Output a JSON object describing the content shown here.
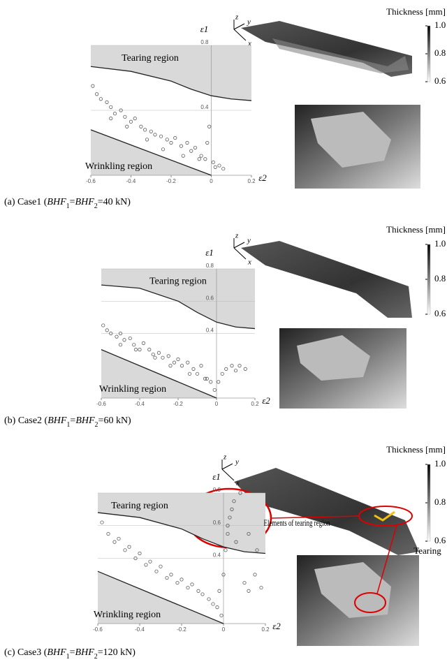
{
  "chart_data": [
    {
      "type": "scatter",
      "x_label": "ε2",
      "y_label": "ε1",
      "color": "#333333",
      "xlim": [
        -0.6,
        0.2
      ],
      "ylim": [
        0,
        0.8
      ],
      "xticks": [
        -0.6,
        -0.4,
        -0.2,
        0,
        0.2
      ],
      "yticks": [
        0.4,
        0.8
      ],
      "x": [
        -0.59,
        -0.57,
        -0.55,
        -0.52,
        -0.5,
        -0.48,
        -0.45,
        -0.43,
        -0.4,
        -0.38,
        -0.35,
        -0.33,
        -0.3,
        -0.28,
        -0.25,
        -0.22,
        -0.2,
        -0.18,
        -0.15,
        -0.12,
        -0.1,
        -0.08,
        -0.05,
        -0.03,
        -0.01,
        0.01,
        0.02,
        0.04,
        0.06,
        -0.02,
        -0.06,
        -0.14,
        -0.24,
        -0.32,
        -0.42,
        -0.5
      ],
      "values": [
        0.55,
        0.5,
        0.47,
        0.45,
        0.42,
        0.38,
        0.4,
        0.36,
        0.33,
        0.35,
        0.3,
        0.28,
        0.27,
        0.25,
        0.24,
        0.22,
        0.2,
        0.23,
        0.18,
        0.2,
        0.15,
        0.17,
        0.12,
        0.1,
        0.3,
        0.08,
        0.05,
        0.06,
        0.04,
        0.2,
        0.1,
        0.12,
        0.16,
        0.22,
        0.3,
        0.35
      ],
      "tearing_curve": {
        "x": [
          -0.6,
          -0.4,
          -0.2,
          -0.1,
          0,
          0.1,
          0.2
        ],
        "values": [
          0.67,
          0.64,
          0.58,
          0.53,
          0.49,
          0.47,
          0.46
        ]
      },
      "wrinkling_line": {
        "x": [
          -0.6,
          0
        ],
        "values": [
          0.28,
          0
        ]
      },
      "tearing_text": "Tearing region",
      "wrinkling_text": "Wrinkling region",
      "colorbar_title": "Thickness [mm]",
      "colorbar_ticks": [
        {
          "value": 1,
          "label": "1.0"
        },
        0.8,
        0.6
      ],
      "caption": [
        "(a) Case1 (",
        "BHF",
        "1",
        "=",
        "BHF",
        "2",
        "=40 kN)"
      ]
    },
    {
      "type": "scatter",
      "x_label": "ε2",
      "y_label": "ε1",
      "color": "#333333",
      "xlim": [
        -0.6,
        0.2
      ],
      "ylim": [
        0,
        0.8
      ],
      "xticks": [
        -0.6,
        -0.4,
        -0.2,
        0,
        0.2
      ],
      "yticks": [
        0.4,
        0.6,
        0.8
      ],
      "x": [
        -0.59,
        -0.57,
        -0.55,
        -0.52,
        -0.5,
        -0.48,
        -0.45,
        -0.43,
        -0.4,
        -0.38,
        -0.35,
        -0.33,
        -0.3,
        -0.28,
        -0.25,
        -0.22,
        -0.2,
        -0.18,
        -0.15,
        -0.12,
        -0.1,
        -0.08,
        -0.05,
        -0.03,
        -0.01,
        0.01,
        0.03,
        0.05,
        0.08,
        0.1,
        0.12,
        0.15,
        -0.06,
        -0.14,
        -0.24,
        -0.32,
        -0.42,
        -0.5
      ],
      "values": [
        0.45,
        0.42,
        0.4,
        0.38,
        0.4,
        0.36,
        0.37,
        0.33,
        0.3,
        0.34,
        0.3,
        0.27,
        0.28,
        0.25,
        0.26,
        0.22,
        0.24,
        0.2,
        0.22,
        0.18,
        0.15,
        0.2,
        0.12,
        0.1,
        0.05,
        0.1,
        0.15,
        0.18,
        0.2,
        0.17,
        0.2,
        0.18,
        0.12,
        0.15,
        0.2,
        0.25,
        0.3,
        0.33
      ],
      "tearing_curve": {
        "x": [
          -0.6,
          -0.4,
          -0.2,
          -0.1,
          0,
          0.1,
          0.2
        ],
        "values": [
          0.7,
          0.68,
          0.6,
          0.53,
          0.47,
          0.44,
          0.43
        ]
      },
      "wrinkling_line": {
        "x": [
          -0.6,
          0
        ],
        "values": [
          0.3,
          0
        ]
      },
      "tearing_text": "Tearing region",
      "wrinkling_text": "Wrinkling region",
      "colorbar_title": "Thickness [mm]",
      "colorbar_ticks": [
        {
          "value": 1,
          "label": "1.0"
        },
        0.8,
        0.6
      ],
      "caption": [
        "(b) Case2 (",
        "BHF",
        "1",
        "=",
        "BHF",
        "2",
        "=60 kN)"
      ]
    },
    {
      "type": "scatter",
      "x_label": "ε2",
      "y_label": "ε1",
      "color": "#333333",
      "xlim": [
        -0.6,
        0.2
      ],
      "ylim": [
        0,
        0.8
      ],
      "xticks": [
        -0.6,
        -0.4,
        -0.2,
        0,
        0.2
      ],
      "yticks": [
        0.4,
        0.6,
        0.8
      ],
      "x": [
        -0.58,
        -0.55,
        -0.52,
        -0.5,
        -0.47,
        -0.45,
        -0.42,
        -0.4,
        -0.37,
        -0.35,
        -0.32,
        -0.3,
        -0.27,
        -0.25,
        -0.22,
        -0.2,
        -0.17,
        -0.15,
        -0.12,
        -0.1,
        -0.07,
        -0.05,
        -0.03,
        -0.01,
        0,
        0.01,
        0.02,
        0.03,
        0.05,
        0.08,
        0.1,
        0.12,
        0.15,
        0.18,
        0.02,
        0.04,
        0.06,
        0.12,
        0.16,
        -0.02
      ],
      "values": [
        0.62,
        0.55,
        0.5,
        0.52,
        0.45,
        0.47,
        0.4,
        0.43,
        0.36,
        0.38,
        0.32,
        0.35,
        0.28,
        0.3,
        0.25,
        0.27,
        0.22,
        0.24,
        0.2,
        0.18,
        0.15,
        0.12,
        0.1,
        0.05,
        0.3,
        0.45,
        0.55,
        0.65,
        0.75,
        0.8,
        0.25,
        0.2,
        0.3,
        0.22,
        0.6,
        0.7,
        0.5,
        0.55,
        0.45,
        0.2
      ],
      "tearing_curve": {
        "x": [
          -0.6,
          -0.4,
          -0.2,
          -0.1,
          0,
          0.1,
          0.2
        ],
        "values": [
          0.68,
          0.65,
          0.58,
          0.52,
          0.47,
          0.44,
          0.43
        ]
      },
      "wrinkling_line": {
        "x": [
          -0.6,
          0
        ],
        "values": [
          0.32,
          0
        ]
      },
      "tearing_text": "Tearing region",
      "wrinkling_text": "Wrinkling region",
      "colorbar_title": "Thickness [mm]",
      "colorbar_ticks": [
        {
          "value": 1,
          "label": "1.0"
        },
        0.8,
        0.6
      ],
      "elements_text": "Elements of tearing region",
      "tearing_label": "Tearing",
      "caption": [
        "(c) Case3 (",
        "BHF",
        "1",
        "=",
        "BHF",
        "2",
        "=120 kN)"
      ]
    }
  ]
}
